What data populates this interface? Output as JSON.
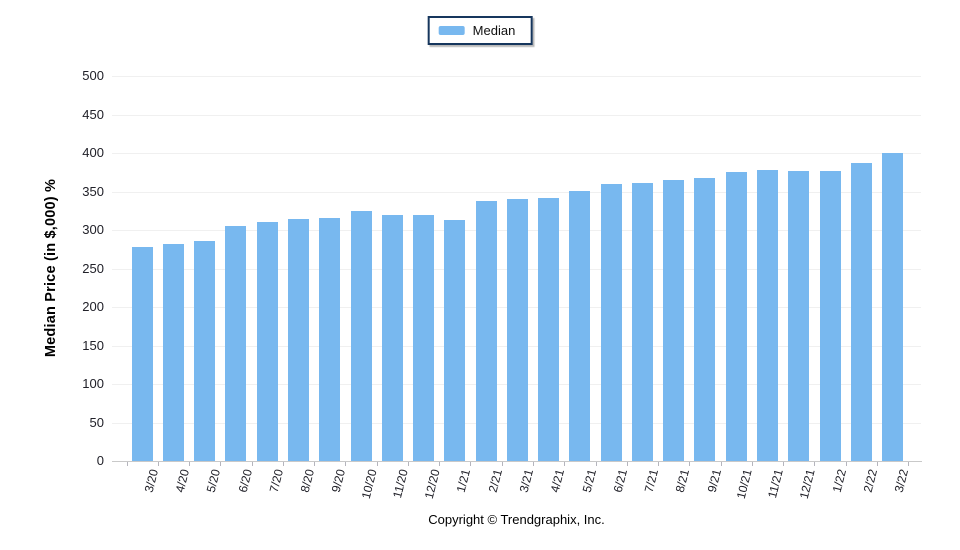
{
  "legend": {
    "label": "Median",
    "swatch_color": "#78b8ef",
    "border_color": "#16365d"
  },
  "axes": {
    "y_title": "Median Price (in $,000) %"
  },
  "footer": {
    "copyright": "Copyright © Trendgraphix, Inc."
  },
  "colors": {
    "bar": "#78b8ef",
    "grid": "#f0f0f0",
    "axis_line": "#c9c9c9",
    "tick": "#b5b5bd",
    "label_text": "#212129"
  },
  "chart_data": {
    "type": "bar",
    "title": "",
    "xlabel": "",
    "ylabel": "Median Price (in $,000) %",
    "ylim": [
      0,
      500
    ],
    "yticks": [
      0,
      50,
      100,
      150,
      200,
      250,
      300,
      350,
      400,
      450,
      500
    ],
    "grid": true,
    "legend_position": "top-center",
    "categories": [
      "3/20",
      "4/20",
      "5/20",
      "6/20",
      "7/20",
      "8/20",
      "9/20",
      "10/20",
      "11/20",
      "12/20",
      "1/21",
      "2/21",
      "3/21",
      "4/21",
      "5/21",
      "6/21",
      "7/21",
      "8/21",
      "9/21",
      "10/21",
      "11/21",
      "12/21",
      "1/22",
      "2/22",
      "3/22"
    ],
    "series": [
      {
        "name": "Median",
        "color": "#78b8ef",
        "values": [
          278,
          282,
          286,
          305,
          310,
          314,
          315,
          325,
          320,
          320,
          313,
          338,
          340,
          342,
          351,
          360,
          361,
          365,
          367,
          375,
          378,
          376,
          376,
          387,
          400
        ]
      }
    ]
  }
}
